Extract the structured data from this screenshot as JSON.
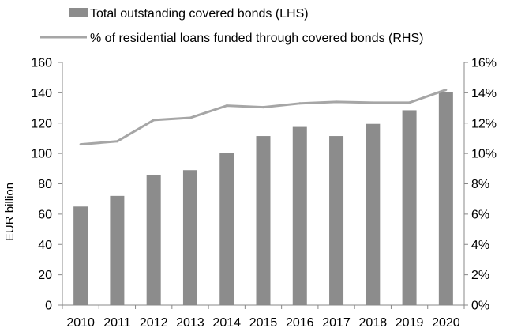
{
  "chart_data": {
    "type": "bar",
    "title": "",
    "categories": [
      "2010",
      "2011",
      "2012",
      "2013",
      "2014",
      "2015",
      "2016",
      "2017",
      "2018",
      "2019",
      "2020"
    ],
    "series": [
      {
        "name": "Total outstanding covered bonds (LHS)",
        "type": "bar",
        "axis": "left",
        "color": "#8c8c8c",
        "values": [
          65,
          72,
          86,
          89,
          100.5,
          111.5,
          117.5,
          111.5,
          119.5,
          128.5,
          140.5
        ]
      },
      {
        "name": "% of residential loans funded through covered bonds (RHS)",
        "type": "line",
        "axis": "right",
        "color": "#a6a6a6",
        "values": [
          10.6,
          10.8,
          12.2,
          12.35,
          13.15,
          13.05,
          13.3,
          13.4,
          13.35,
          13.35,
          14.2
        ]
      }
    ],
    "ylabel": "EUR billion",
    "xlabel": "",
    "ylim": [
      0,
      160
    ],
    "y2lim": [
      0,
      16
    ],
    "yticks": [
      "0",
      "20",
      "40",
      "60",
      "80",
      "100",
      "120",
      "140",
      "160"
    ],
    "y2ticks": [
      "0%",
      "2%",
      "4%",
      "6%",
      "8%",
      "10%",
      "12%",
      "14%",
      "16%"
    ],
    "legend_position": "top",
    "grid": false
  }
}
